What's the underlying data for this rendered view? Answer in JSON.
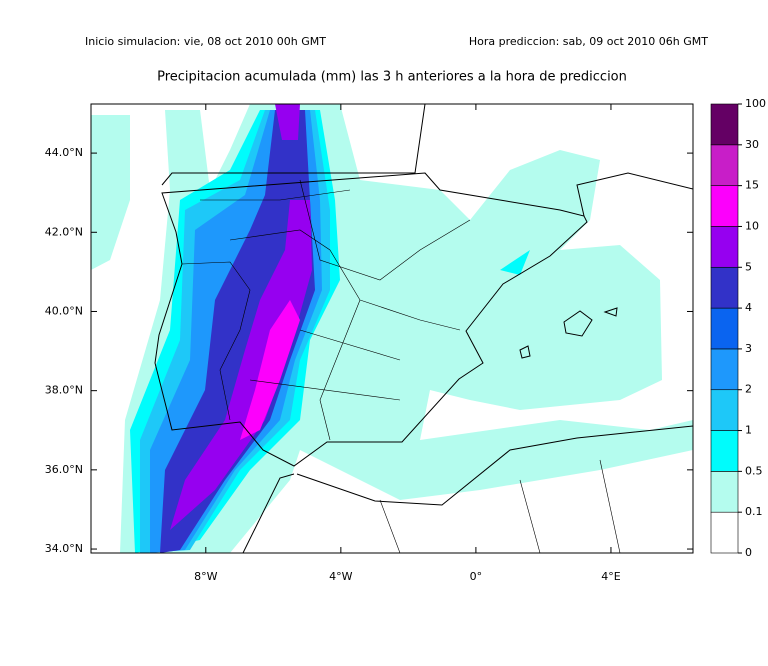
{
  "header": {
    "left": "Inicio simulacion: vie, 08 oct 2010 00h GMT",
    "right": "Hora prediccion: sab, 09 oct 2010 06h GMT"
  },
  "title": "Precipitacion acumulada (mm) las 3 h anteriores a la hora de prediccion",
  "map": {
    "xlim": [
      -11.4,
      6.43
    ],
    "ylim": [
      33.9,
      45.24
    ],
    "xticks": [
      {
        "value": -8,
        "label": "8°W"
      },
      {
        "value": -4,
        "label": "4°W"
      },
      {
        "value": 0,
        "label": "0°"
      },
      {
        "value": 4,
        "label": "4°E"
      }
    ],
    "yticks": [
      {
        "value": 34,
        "label": "34.0°N"
      },
      {
        "value": 36,
        "label": "36.0°N"
      },
      {
        "value": 38,
        "label": "38.0°N"
      },
      {
        "value": 40,
        "label": "40.0°N"
      },
      {
        "value": 42,
        "label": "42.0°N"
      },
      {
        "value": 44,
        "label": "44.0°N"
      }
    ]
  },
  "colorbar": {
    "levels": [
      0,
      0.1,
      0.5,
      1,
      2,
      3,
      4,
      5,
      10,
      15,
      30,
      100
    ],
    "colors": [
      "#ffffff",
      "#b4fcee",
      "#00fcfc",
      "#1ec8f8",
      "#1e98fc",
      "#0a64f0",
      "#3232c8",
      "#9600f0",
      "#fc00fc",
      "#c81ec8",
      "#640064"
    ]
  }
}
